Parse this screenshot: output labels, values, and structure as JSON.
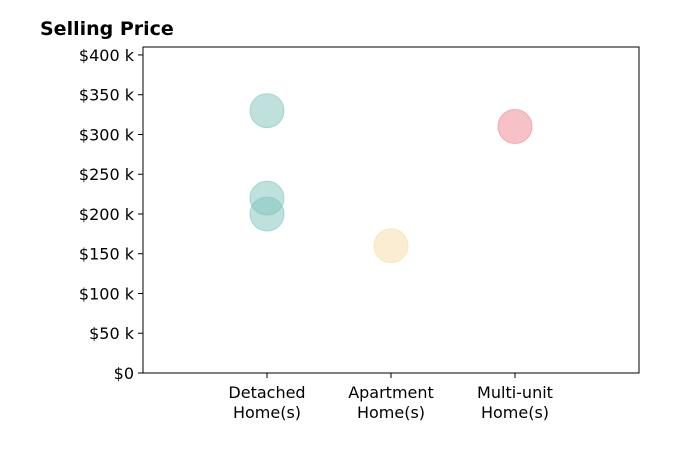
{
  "chart_data": {
    "type": "scatter",
    "title": "Selling Price",
    "xlabel": "",
    "ylabel": "",
    "categories": [
      [
        "Detached",
        "Home(s)"
      ],
      [
        "Apartment",
        "Home(s)"
      ],
      [
        "Multi-unit",
        "Home(s)"
      ]
    ],
    "xlim": [
      -1,
      3
    ],
    "ylim": [
      0,
      410000
    ],
    "y_ticks": [
      0,
      50000,
      100000,
      150000,
      200000,
      250000,
      300000,
      350000,
      400000
    ],
    "y_tick_labels": [
      "$0",
      "$50 k",
      "$100 k",
      "$150 k",
      "$200 k",
      "$250 k",
      "$300 k",
      "$350 k",
      "$400 k"
    ],
    "grid": false,
    "series": [
      {
        "category_index": 0,
        "values": [
          330000,
          220000,
          200000
        ],
        "color": "#7fc4bc"
      },
      {
        "category_index": 1,
        "values": [
          160000
        ],
        "color": "#f6dca4"
      },
      {
        "category_index": 2,
        "values": [
          310000
        ],
        "color": "#f0868f"
      }
    ],
    "marker_opacity": 0.5
  }
}
